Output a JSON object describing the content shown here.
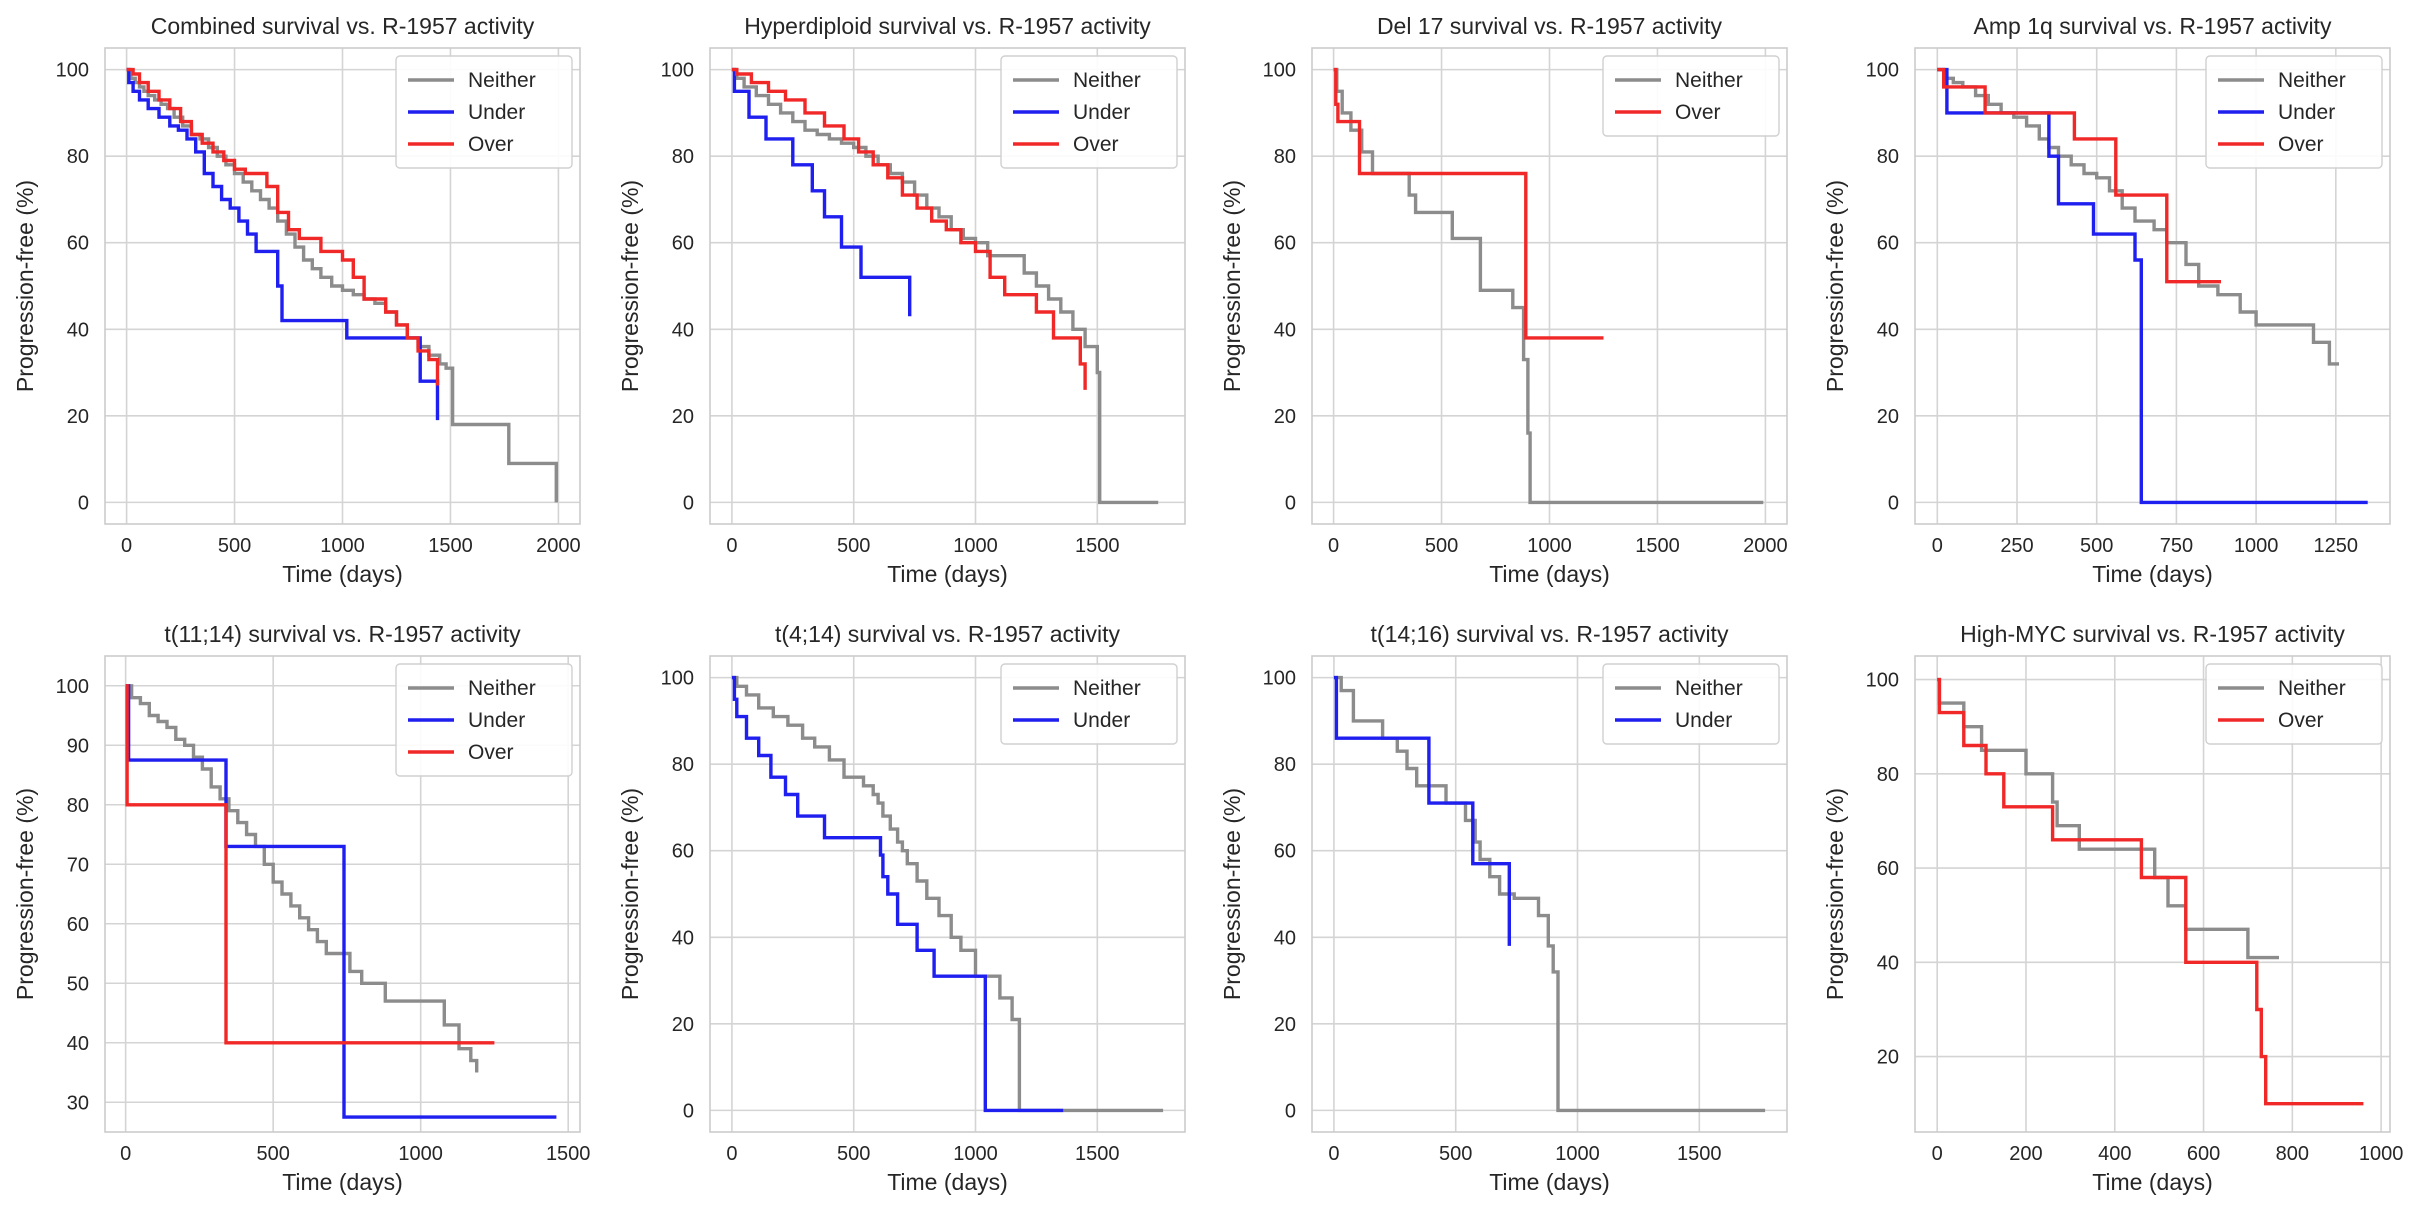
{
  "colors": {
    "Neither": "#8c8c8c",
    "Under": "#1f1fef",
    "Over": "#f02828"
  },
  "chart_data": [
    {
      "type": "line",
      "step": true,
      "title": "Combined survival vs. R-1957 activity",
      "xlabel": "Time (days)",
      "ylabel": "Progression-free (%)",
      "xlim": [
        -100,
        2100
      ],
      "ylim": [
        -5,
        105
      ],
      "xticks": [
        0,
        500,
        1000,
        1500,
        2000
      ],
      "yticks": [
        0,
        20,
        40,
        60,
        80,
        100
      ],
      "legend": "top-right",
      "series": [
        {
          "name": "Neither",
          "x": [
            0,
            20,
            40,
            60,
            80,
            100,
            130,
            160,
            190,
            220,
            260,
            300,
            340,
            380,
            420,
            460,
            500,
            540,
            580,
            620,
            660,
            700,
            740,
            780,
            820,
            860,
            900,
            950,
            1000,
            1050,
            1100,
            1150,
            1200,
            1250,
            1300,
            1350,
            1400,
            1450,
            1480,
            1500,
            1510,
            1760,
            1770,
            1990
          ],
          "y": [
            100,
            98,
            97,
            96,
            95,
            94,
            93,
            92,
            91,
            89,
            87,
            85,
            84,
            82,
            80,
            78,
            76,
            74,
            72,
            70,
            68,
            65,
            62,
            59,
            56,
            54,
            52,
            50,
            49,
            48,
            47,
            46,
            44,
            41,
            38,
            36,
            34,
            32,
            31,
            31,
            18,
            18,
            9,
            0
          ]
        },
        {
          "name": "Under",
          "x": [
            0,
            10,
            30,
            60,
            100,
            150,
            200,
            240,
            280,
            320,
            360,
            400,
            440,
            480,
            520,
            560,
            600,
            650,
            700,
            720,
            1020,
            1360,
            1440
          ],
          "y": [
            100,
            97,
            95,
            93,
            91,
            89,
            87,
            86,
            84,
            81,
            76,
            73,
            70,
            68,
            65,
            62,
            58,
            58,
            50,
            42,
            38,
            28,
            19
          ]
        },
        {
          "name": "Over",
          "x": [
            0,
            30,
            60,
            100,
            150,
            200,
            250,
            300,
            350,
            400,
            450,
            500,
            550,
            650,
            700,
            750,
            800,
            900,
            1000,
            1050,
            1100,
            1200,
            1250,
            1300,
            1350,
            1400,
            1430,
            1440
          ],
          "y": [
            100,
            99,
            97,
            95,
            93,
            91,
            88,
            85,
            83,
            81,
            79,
            77,
            76,
            73,
            67,
            63,
            61,
            58,
            56,
            52,
            47,
            44,
            41,
            38,
            35,
            33,
            33,
            27
          ]
        }
      ]
    },
    {
      "type": "line",
      "step": true,
      "title": "Hyperdiploid survival vs. R-1957 activity",
      "xlabel": "Time (days)",
      "ylabel": "Progression-free (%)",
      "xlim": [
        -90,
        1860
      ],
      "ylim": [
        -5,
        105
      ],
      "xticks": [
        0,
        500,
        1000,
        1500
      ],
      "yticks": [
        0,
        20,
        40,
        60,
        80,
        100
      ],
      "legend": "top-right",
      "series": [
        {
          "name": "Neither",
          "x": [
            0,
            20,
            50,
            100,
            150,
            200,
            250,
            300,
            350,
            400,
            450,
            500,
            550,
            600,
            650,
            700,
            750,
            800,
            850,
            900,
            950,
            1000,
            1050,
            1150,
            1200,
            1250,
            1300,
            1350,
            1400,
            1450,
            1480,
            1500,
            1510,
            1750
          ],
          "y": [
            100,
            98,
            96,
            94,
            92,
            90,
            88,
            86,
            85,
            84,
            83,
            82,
            80,
            78,
            76,
            74,
            71,
            68,
            66,
            63,
            61,
            60,
            57,
            57,
            53,
            50,
            47,
            44,
            40,
            36,
            36,
            30,
            0,
            0
          ]
        },
        {
          "name": "Under",
          "x": [
            0,
            10,
            70,
            140,
            250,
            330,
            380,
            450,
            530,
            720,
            730
          ],
          "y": [
            100,
            95,
            89,
            84,
            78,
            72,
            66,
            59,
            52,
            52,
            43
          ]
        },
        {
          "name": "Over",
          "x": [
            0,
            20,
            80,
            150,
            220,
            300,
            380,
            460,
            520,
            580,
            640,
            700,
            760,
            820,
            880,
            940,
            1000,
            1060,
            1120,
            1200,
            1250,
            1320,
            1430,
            1450
          ],
          "y": [
            100,
            99,
            97,
            95,
            93,
            90,
            87,
            84,
            81,
            78,
            75,
            71,
            68,
            65,
            63,
            60,
            58,
            52,
            48,
            48,
            44,
            38,
            32,
            26
          ]
        }
      ]
    },
    {
      "type": "line",
      "step": true,
      "title": "Del 17 survival vs. R-1957 activity",
      "xlabel": "Time (days)",
      "ylabel": "Progression-free (%)",
      "xlim": [
        -100,
        2100
      ],
      "ylim": [
        -5,
        105
      ],
      "xticks": [
        0,
        500,
        1000,
        1500,
        2000
      ],
      "yticks": [
        0,
        20,
        40,
        60,
        80,
        100
      ],
      "legend": "top-right",
      "series": [
        {
          "name": "Neither",
          "x": [
            0,
            15,
            40,
            80,
            130,
            180,
            350,
            380,
            550,
            680,
            830,
            880,
            900,
            910,
            1990
          ],
          "y": [
            100,
            95,
            90,
            86,
            81,
            76,
            71,
            67,
            61,
            49,
            45,
            33,
            16,
            0,
            0
          ]
        },
        {
          "name": "Over",
          "x": [
            0,
            10,
            20,
            120,
            880,
            890,
            1250
          ],
          "y": [
            100,
            92,
            88,
            76,
            76,
            38,
            38
          ]
        }
      ]
    },
    {
      "type": "line",
      "step": true,
      "title": "Amp 1q survival vs. R-1957 activity",
      "xlabel": "Time (days)",
      "ylabel": "Progression-free (%)",
      "xlim": [
        -70,
        1420
      ],
      "ylim": [
        -5,
        105
      ],
      "xticks": [
        0,
        250,
        500,
        750,
        1000,
        1250
      ],
      "yticks": [
        0,
        20,
        40,
        60,
        80,
        100
      ],
      "legend": "top-right",
      "series": [
        {
          "name": "Neither",
          "x": [
            0,
            20,
            50,
            80,
            120,
            160,
            200,
            240,
            280,
            320,
            350,
            380,
            420,
            460,
            500,
            540,
            580,
            620,
            680,
            720,
            780,
            820,
            880,
            950,
            1000,
            1180,
            1230,
            1260
          ],
          "y": [
            100,
            98,
            97,
            96,
            94,
            92,
            90,
            89,
            87,
            84,
            82,
            80,
            78,
            76,
            75,
            72,
            68,
            65,
            63,
            60,
            55,
            50,
            48,
            44,
            41,
            37,
            32,
            32
          ]
        },
        {
          "name": "Under",
          "x": [
            0,
            30,
            320,
            350,
            380,
            490,
            600,
            620,
            640,
            1350
          ],
          "y": [
            100,
            90,
            90,
            80,
            69,
            62,
            62,
            56,
            0,
            0
          ]
        },
        {
          "name": "Over",
          "x": [
            0,
            20,
            150,
            380,
            430,
            560,
            710,
            720,
            890
          ],
          "y": [
            100,
            96,
            90,
            90,
            84,
            71,
            71,
            51,
            51
          ]
        }
      ]
    },
    {
      "type": "line",
      "step": true,
      "title": "t(11;14) survival vs. R-1957 activity",
      "xlabel": "Time (days)",
      "ylabel": "Progression-free (%)",
      "xlim": [
        -70,
        1540
      ],
      "ylim": [
        25,
        105
      ],
      "xticks": [
        0,
        500,
        1000,
        1500
      ],
      "yticks": [
        30,
        40,
        50,
        60,
        70,
        80,
        90,
        100
      ],
      "legend": "top-right",
      "series": [
        {
          "name": "Neither",
          "x": [
            0,
            20,
            50,
            80,
            110,
            140,
            170,
            200,
            230,
            260,
            290,
            320,
            350,
            380,
            410,
            440,
            470,
            500,
            530,
            560,
            590,
            620,
            650,
            680,
            720,
            760,
            800,
            880,
            940,
            1000,
            1080,
            1130,
            1150,
            1170,
            1190
          ],
          "y": [
            100,
            98,
            97,
            95,
            94,
            93,
            91,
            90,
            88,
            86,
            83,
            81,
            79,
            77,
            75,
            73,
            70,
            67,
            65,
            63,
            61,
            59,
            57,
            55,
            55,
            52,
            50,
            47,
            47,
            47,
            43,
            39,
            39,
            37,
            35
          ]
        },
        {
          "name": "Under",
          "x": [
            0,
            10,
            340,
            740,
            1460
          ],
          "y": [
            100,
            87.5,
            73,
            27.5,
            27.5
          ]
        },
        {
          "name": "Over",
          "x": [
            0,
            5,
            340,
            1250
          ],
          "y": [
            100,
            80,
            40,
            40
          ]
        }
      ]
    },
    {
      "type": "line",
      "step": true,
      "title": "t(4;14) survival vs. R-1957 activity",
      "xlabel": "Time (days)",
      "ylabel": "Progression-free (%)",
      "xlim": [
        -90,
        1860
      ],
      "ylim": [
        -5,
        105
      ],
      "xticks": [
        0,
        500,
        1000,
        1500
      ],
      "yticks": [
        0,
        20,
        40,
        60,
        80,
        100
      ],
      "legend": "top-right",
      "series": [
        {
          "name": "Neither",
          "x": [
            0,
            20,
            60,
            110,
            170,
            230,
            290,
            340,
            400,
            460,
            500,
            540,
            580,
            600,
            620,
            650,
            680,
            700,
            720,
            760,
            800,
            850,
            900,
            940,
            1000,
            1050,
            1100,
            1150,
            1180,
            1770
          ],
          "y": [
            100,
            98,
            96,
            93,
            91,
            89,
            86,
            84,
            81,
            77,
            77,
            75,
            73,
            71,
            68,
            65,
            62,
            60,
            57,
            53,
            49,
            45,
            40,
            37,
            31,
            31,
            26,
            21,
            0,
            0
          ]
        },
        {
          "name": "Under",
          "x": [
            0,
            10,
            20,
            60,
            110,
            160,
            220,
            270,
            380,
            610,
            620,
            640,
            680,
            760,
            830,
            1030,
            1040,
            1360
          ],
          "y": [
            100,
            95,
            91,
            86,
            82,
            77,
            73,
            68,
            63,
            59,
            54,
            50,
            43,
            37,
            31,
            31,
            0,
            0
          ]
        }
      ]
    },
    {
      "type": "line",
      "step": true,
      "title": "t(14;16) survival vs. R-1957 activity",
      "xlabel": "Time (days)",
      "ylabel": "Progression-free (%)",
      "xlim": [
        -90,
        1860
      ],
      "ylim": [
        -5,
        105
      ],
      "xticks": [
        0,
        500,
        1000,
        1500
      ],
      "yticks": [
        0,
        20,
        40,
        60,
        80,
        100
      ],
      "legend": "top-right",
      "series": [
        {
          "name": "Neither",
          "x": [
            0,
            30,
            80,
            200,
            260,
            300,
            340,
            460,
            540,
            580,
            600,
            640,
            680,
            740,
            840,
            880,
            900,
            920,
            1770
          ],
          "y": [
            100,
            97,
            90,
            86,
            83,
            79,
            75,
            71,
            67,
            62,
            58,
            54,
            50,
            49,
            45,
            38,
            32,
            0,
            0
          ]
        },
        {
          "name": "Under",
          "x": [
            0,
            10,
            360,
            390,
            460,
            570,
            720
          ],
          "y": [
            100,
            86,
            86,
            71,
            71,
            57,
            38
          ]
        }
      ]
    },
    {
      "type": "line",
      "step": true,
      "title": "High-MYC survival vs. R-1957 activity",
      "xlabel": "Time (days)",
      "ylabel": "Progression-free (%)",
      "xlim": [
        -50,
        1020
      ],
      "ylim": [
        4,
        105
      ],
      "xticks": [
        0,
        200,
        400,
        600,
        800,
        1000
      ],
      "yticks": [
        20,
        40,
        60,
        80,
        100
      ],
      "legend": "top-right",
      "series": [
        {
          "name": "Neither",
          "x": [
            0,
            5,
            60,
            100,
            200,
            260,
            270,
            320,
            490,
            520,
            560,
            640,
            700,
            770
          ],
          "y": [
            100,
            95,
            90,
            85,
            80,
            74,
            69,
            64,
            58,
            52,
            47,
            47,
            41,
            41
          ]
        },
        {
          "name": "Over",
          "x": [
            0,
            5,
            60,
            110,
            150,
            260,
            460,
            560,
            560,
            700,
            720,
            730,
            740,
            960
          ],
          "y": [
            100,
            93,
            86,
            80,
            73,
            66,
            58,
            49,
            40,
            40,
            30,
            20,
            10,
            10
          ]
        }
      ]
    }
  ]
}
